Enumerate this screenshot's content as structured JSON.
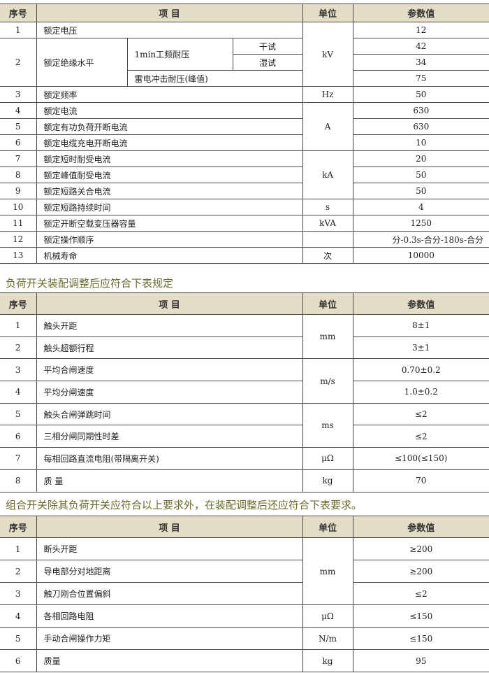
{
  "headers": {
    "no": "序号",
    "item": "项  目",
    "unit": "单位",
    "value": "参数值"
  },
  "table1": {
    "r1": {
      "no": "1",
      "item": "额定电压",
      "value": "12"
    },
    "r2": {
      "no": "2",
      "item": "额定绝缘水平",
      "sub1": "1min工频耐压",
      "dry": "干试",
      "wet": "湿试",
      "sub2": "雷电冲击耐压(峰值)",
      "v_dry": "42",
      "v_wet": "34",
      "v_sub2": "75"
    },
    "unit_kv": "kV",
    "r3": {
      "no": "3",
      "item": "额定频率",
      "unit": "Hz",
      "value": "50"
    },
    "r4": {
      "no": "4",
      "item": "额定电流",
      "value": "630"
    },
    "r5": {
      "no": "5",
      "item": "额定有功负荷开断电流",
      "value": "630"
    },
    "r6": {
      "no": "6",
      "item": "额定电缆充电开断电流",
      "value": "10"
    },
    "unit_a": "A",
    "r7": {
      "no": "7",
      "item": "额定短时耐受电流",
      "value": "20"
    },
    "r8": {
      "no": "8",
      "item": "额定峰值耐受电流",
      "value": "50"
    },
    "r9": {
      "no": "9",
      "item": "额定短路关合电流",
      "value": "50"
    },
    "unit_ka": "kA",
    "r10": {
      "no": "10",
      "item": "额定短路持续时间",
      "unit": "s",
      "value": "4"
    },
    "r11": {
      "no": "11",
      "item": "额定开断空载变压器容量",
      "unit": "kVA",
      "value": "1250"
    },
    "r12": {
      "no": "12",
      "item": "额定操作顺序",
      "unit": "",
      "value": "分-0.3s-合分-180s-合分"
    },
    "r13": {
      "no": "13",
      "item": "机械寿命",
      "unit": "次",
      "value": "10000"
    }
  },
  "heading2": "负荷开关装配调整后应符合下表规定",
  "table2": {
    "rows": [
      {
        "no": "1",
        "item": "触头开距",
        "value": "8±1"
      },
      {
        "no": "2",
        "item": "触头超额行程",
        "value": "3±1"
      },
      {
        "no": "3",
        "item": "平均合闸速度",
        "value": "0.70±0.2"
      },
      {
        "no": "4",
        "item": "平均分闸速度",
        "value": "1.0±0.2"
      },
      {
        "no": "5",
        "item": "触头合闸弹跳时间",
        "value": "≤2"
      },
      {
        "no": "6",
        "item": "三相分闸同期性时差",
        "value": "≤2"
      },
      {
        "no": "7",
        "item": "每相回路直流电阻(带隔离开关)",
        "value": "≤100(≤150)"
      },
      {
        "no": "8",
        "item": "质  量",
        "value": "70"
      }
    ],
    "unit_groups": [
      {
        "unit": "mm",
        "rows": 2
      },
      {
        "unit": "m/s",
        "rows": 2
      },
      {
        "unit": "ms",
        "rows": 2
      },
      {
        "unit": "μΩ",
        "rows": 1
      },
      {
        "unit": "kg",
        "rows": 1
      }
    ]
  },
  "heading3": "组合开关除其负荷开关应符合以上要求外，在装配调整后还应符合下表要求。",
  "table3": {
    "rows": [
      {
        "no": "1",
        "item": "断头开距",
        "value": "≥200"
      },
      {
        "no": "2",
        "item": "导电部分对地距离",
        "value": "≥200"
      },
      {
        "no": "3",
        "item": "触刀刚合位置偏斜",
        "value": "≤2"
      },
      {
        "no": "4",
        "item": "各相回路电阻",
        "value": "≤150"
      },
      {
        "no": "5",
        "item": "手动合闸操作力矩",
        "value": "≤150"
      },
      {
        "no": "6",
        "item": "质量",
        "value": "95"
      }
    ],
    "unit_groups": [
      {
        "unit": "mm",
        "rows": 3
      },
      {
        "unit": "μΩ",
        "rows": 1
      },
      {
        "unit": "N/m",
        "rows": 1
      },
      {
        "unit": "kg",
        "rows": 1
      }
    ]
  },
  "colors": {
    "header_bg": "#e4ddc6",
    "heading_text": "#6b6a2c"
  }
}
